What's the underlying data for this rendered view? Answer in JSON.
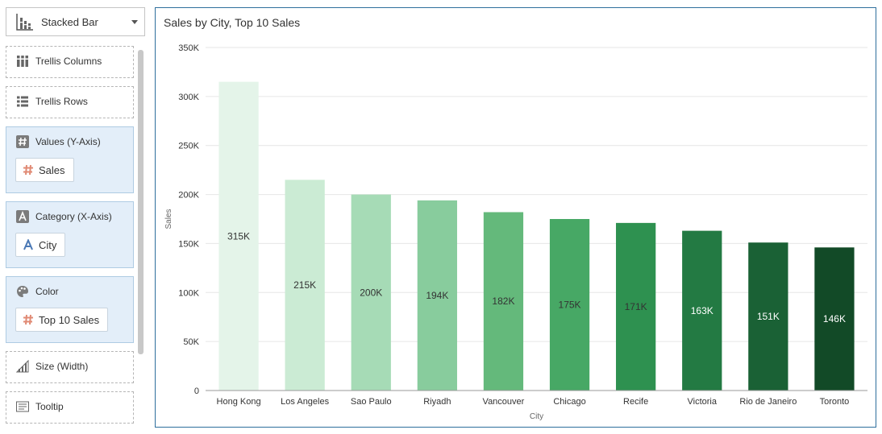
{
  "chart_type": {
    "label": "Stacked Bar"
  },
  "wells": {
    "trellis_columns": {
      "label": "Trellis Columns"
    },
    "trellis_rows": {
      "label": "Trellis Rows"
    },
    "values": {
      "label": "Values (Y-Axis)",
      "chip": "Sales"
    },
    "category": {
      "label": "Category (X-Axis)",
      "chip": "City"
    },
    "color": {
      "label": "Color",
      "chip": "Top 10 Sales"
    },
    "size": {
      "label": "Size (Width)"
    },
    "tooltip": {
      "label": "Tooltip"
    }
  },
  "colors": {
    "panel_border": "#2e6e9c",
    "well_fill": "#e3eef9",
    "measure_icon": "#e08a74",
    "attribute_icon": "#4a78b5"
  },
  "chart_data": {
    "type": "bar",
    "title": "Sales by City, Top 10 Sales",
    "xlabel": "City",
    "ylabel": "Sales",
    "ylim": [
      0,
      350000
    ],
    "yticks": [
      0,
      50000,
      100000,
      150000,
      200000,
      250000,
      300000,
      350000
    ],
    "ytick_labels": [
      "0",
      "50K",
      "100K",
      "150K",
      "200K",
      "250K",
      "300K",
      "350K"
    ],
    "grid": true,
    "categories": [
      "Hong Kong",
      "Los Angeles",
      "Sao Paulo",
      "Riyadh",
      "Vancouver",
      "Chicago",
      "Recife",
      "Victoria",
      "Rio de Janeiro",
      "Toronto"
    ],
    "values": [
      315000,
      215000,
      200000,
      194000,
      182000,
      175000,
      171000,
      163000,
      151000,
      146000
    ],
    "data_labels": [
      "315K",
      "215K",
      "200K",
      "194K",
      "182K",
      "175K",
      "171K",
      "163K",
      "151K",
      "146K"
    ],
    "bar_colors": [
      "#e4f4e9",
      "#cbebd4",
      "#a6dbb6",
      "#88cc9d",
      "#64b97b",
      "#47a865",
      "#2e9150",
      "#237a43",
      "#1a6135",
      "#124a27"
    ],
    "label_colors": [
      "#333333",
      "#333333",
      "#333333",
      "#333333",
      "#333333",
      "#333333",
      "#333333",
      "#ffffff",
      "#ffffff",
      "#ffffff"
    ]
  }
}
